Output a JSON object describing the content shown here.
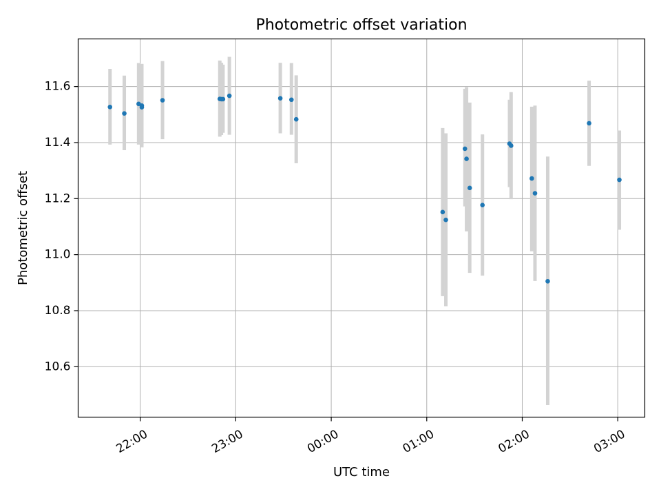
{
  "chart_data": {
    "type": "scatter",
    "title": "Photometric offset variation",
    "xlabel": "UTC time",
    "ylabel": "Photometric offset",
    "x_axis_type": "time",
    "xlim": [
      "21:21",
      "03:17"
    ],
    "ylim": [
      10.42,
      11.77
    ],
    "x_ticks": [
      {
        "time": "22:00",
        "label": "22:00"
      },
      {
        "time": "23:00",
        "label": "23:00"
      },
      {
        "time": "00:00",
        "label": "00:00"
      },
      {
        "time": "01:00",
        "label": "01:00"
      },
      {
        "time": "02:00",
        "label": "02:00"
      },
      {
        "time": "03:00",
        "label": "03:00"
      }
    ],
    "y_ticks": [
      10.6,
      10.8,
      11.0,
      11.2,
      11.4,
      11.6
    ],
    "y_tick_labels": [
      "10.6",
      "10.8",
      "11.0",
      "11.2",
      "11.4",
      "11.6"
    ],
    "grid": true,
    "point_color": "#1f77b4",
    "errorbar_color": "#d3d3d3",
    "series": [
      {
        "points": [
          {
            "x": "21:41",
            "y": 11.527,
            "ylo": 11.393,
            "yhi": 11.663
          },
          {
            "x": "21:50",
            "y": 11.504,
            "ylo": 11.373,
            "yhi": 11.639
          },
          {
            "x": "21:59",
            "y": 11.538,
            "ylo": 11.393,
            "yhi": 11.684
          },
          {
            "x": "22:01",
            "y": 11.532,
            "ylo": 11.383,
            "yhi": 11.681
          },
          {
            "x": "22:01",
            "y": 11.526,
            "ylo": 11.391,
            "yhi": 11.676
          },
          {
            "x": "22:14",
            "y": 11.551,
            "ylo": 11.412,
            "yhi": 11.691
          },
          {
            "x": "22:50",
            "y": 11.556,
            "ylo": 11.421,
            "yhi": 11.693
          },
          {
            "x": "22:51",
            "y": 11.555,
            "ylo": 11.427,
            "yhi": 11.685
          },
          {
            "x": "22:52",
            "y": 11.555,
            "ylo": 11.435,
            "yhi": 11.678
          },
          {
            "x": "22:56",
            "y": 11.567,
            "ylo": 11.428,
            "yhi": 11.706
          },
          {
            "x": "23:28",
            "y": 11.558,
            "ylo": 11.433,
            "yhi": 11.685
          },
          {
            "x": "23:35",
            "y": 11.553,
            "ylo": 11.428,
            "yhi": 11.684
          },
          {
            "x": "23:38",
            "y": 11.483,
            "ylo": 11.326,
            "yhi": 11.64
          },
          {
            "x": "01:10",
            "y": 11.152,
            "ylo": 10.852,
            "yhi": 11.452
          },
          {
            "x": "01:12",
            "y": 11.124,
            "ylo": 10.816,
            "yhi": 11.433
          },
          {
            "x": "01:24",
            "y": 11.378,
            "ylo": 11.172,
            "yhi": 11.592
          },
          {
            "x": "01:25",
            "y": 11.342,
            "ylo": 11.083,
            "yhi": 11.598
          },
          {
            "x": "01:27",
            "y": 11.238,
            "ylo": 10.935,
            "yhi": 11.543
          },
          {
            "x": "01:35",
            "y": 11.177,
            "ylo": 10.925,
            "yhi": 11.429
          },
          {
            "x": "01:52",
            "y": 11.396,
            "ylo": 11.241,
            "yhi": 11.553
          },
          {
            "x": "01:53",
            "y": 11.389,
            "ylo": 11.198,
            "yhi": 11.58
          },
          {
            "x": "02:06",
            "y": 11.272,
            "ylo": 11.012,
            "yhi": 11.528
          },
          {
            "x": "02:08",
            "y": 11.219,
            "ylo": 10.906,
            "yhi": 11.532
          },
          {
            "x": "02:16",
            "y": 10.905,
            "ylo": 10.463,
            "yhi": 11.35
          },
          {
            "x": "02:42",
            "y": 11.469,
            "ylo": 11.317,
            "yhi": 11.621
          },
          {
            "x": "03:01",
            "y": 11.267,
            "ylo": 11.089,
            "yhi": 11.443
          }
        ]
      }
    ]
  }
}
